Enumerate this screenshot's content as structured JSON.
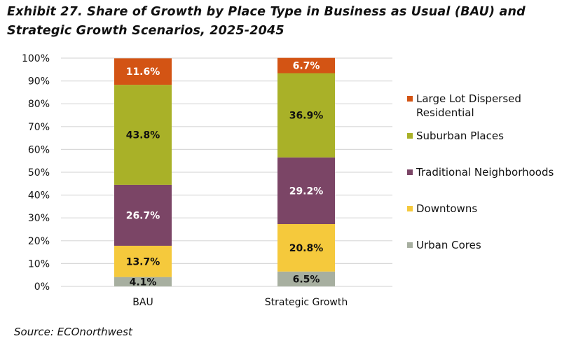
{
  "title_line1": "Exhibit 27. Share of Growth by Place Type in Business as Usual (BAU) and",
  "title_line2": "Strategic Growth Scenarios, 2025-2045",
  "source": "Source: ECOnorthwest",
  "chart_data": {
    "type": "bar",
    "stacked": true,
    "categories": [
      "BAU",
      "Strategic Growth"
    ],
    "ylim": [
      0,
      100
    ],
    "yticks": [
      "0%",
      "10%",
      "20%",
      "30%",
      "40%",
      "50%",
      "60%",
      "70%",
      "80%",
      "90%",
      "100%"
    ],
    "grid": true,
    "legend_position": "right",
    "series": [
      {
        "name": "Urban Cores",
        "values": [
          4.1,
          6.5
        ],
        "labels": [
          "4.1%",
          "6.5%"
        ],
        "color": "#A7AFA0",
        "label_color": "#111111"
      },
      {
        "name": "Downtowns",
        "values": [
          13.7,
          20.8
        ],
        "labels": [
          "13.7%",
          "20.8%"
        ],
        "color": "#F5C93C",
        "label_color": "#111111"
      },
      {
        "name": "Traditional Neighborhoods",
        "values": [
          26.7,
          29.2
        ],
        "labels": [
          "26.7%",
          "29.2%"
        ],
        "color": "#7B4566",
        "label_color": "#FFFFFF"
      },
      {
        "name": "Suburban Places",
        "values": [
          43.8,
          36.9
        ],
        "labels": [
          "43.8%",
          "36.9%"
        ],
        "color": "#A9B128",
        "label_color": "#111111"
      },
      {
        "name": "Large Lot Dispersed Residential",
        "values": [
          11.6,
          6.7
        ],
        "labels": [
          "11.6%",
          "6.7%"
        ],
        "color": "#D35414",
        "label_color": "#FFFFFF"
      }
    ],
    "legend_lines": {
      "Large Lot Dispersed Residential": [
        "Large Lot Dispersed",
        "Residential"
      ]
    }
  }
}
